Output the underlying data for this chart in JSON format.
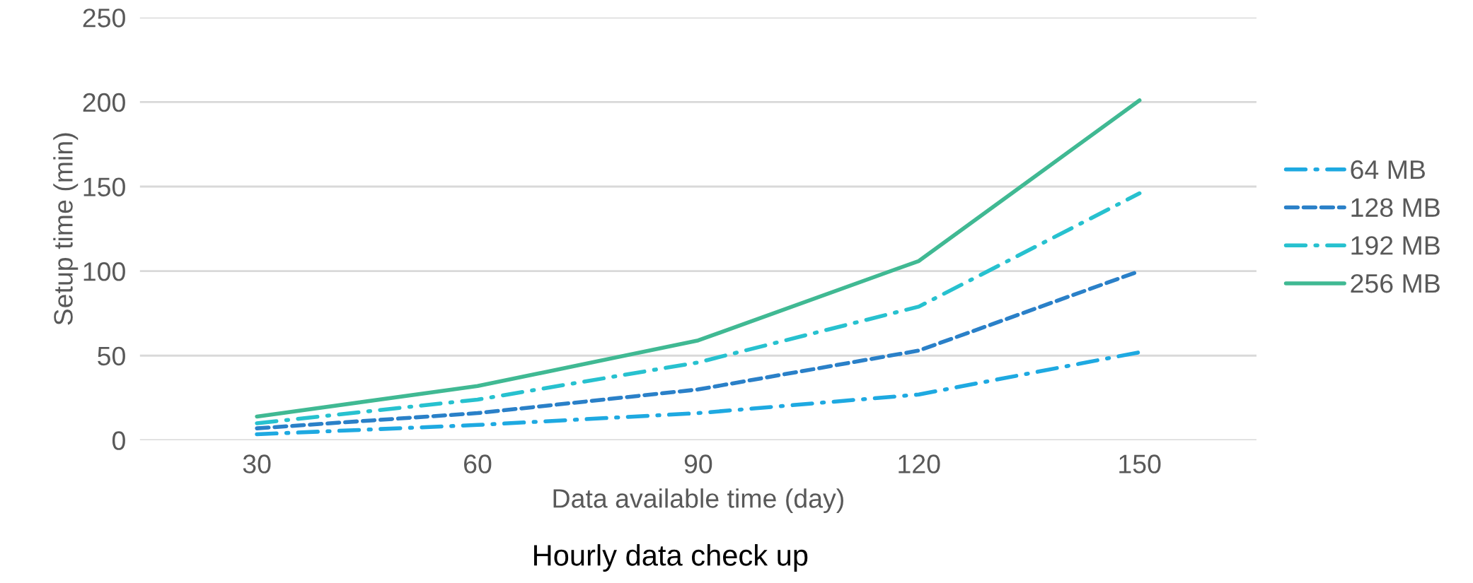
{
  "chart_data": {
    "type": "line",
    "title": "Hourly data check up",
    "xlabel": "Data available time (day)",
    "ylabel": "Setup time (min)",
    "categories": [
      "30",
      "60",
      "90",
      "120",
      "150"
    ],
    "series": [
      {
        "name": "64 MB",
        "color": "#1ea9e1",
        "line_style": "dashdot",
        "values": [
          3.5,
          9,
          16,
          27,
          52
        ]
      },
      {
        "name": "128 MB",
        "color": "#2a80c8",
        "line_style": "dashed",
        "values": [
          7,
          16,
          30,
          53,
          100
        ]
      },
      {
        "name": "192 MB",
        "color": "#27c1cf",
        "line_style": "dashdot",
        "values": [
          10,
          24,
          46,
          79,
          146
        ]
      },
      {
        "name": "256 MB",
        "color": "#40b993",
        "line_style": "solid",
        "values": [
          14,
          32,
          59,
          106,
          201
        ]
      }
    ],
    "ylim": [
      0,
      250
    ],
    "yticks": [
      0,
      50,
      100,
      150,
      200,
      250
    ],
    "grid": "y",
    "legend": "right",
    "marker": "none"
  }
}
